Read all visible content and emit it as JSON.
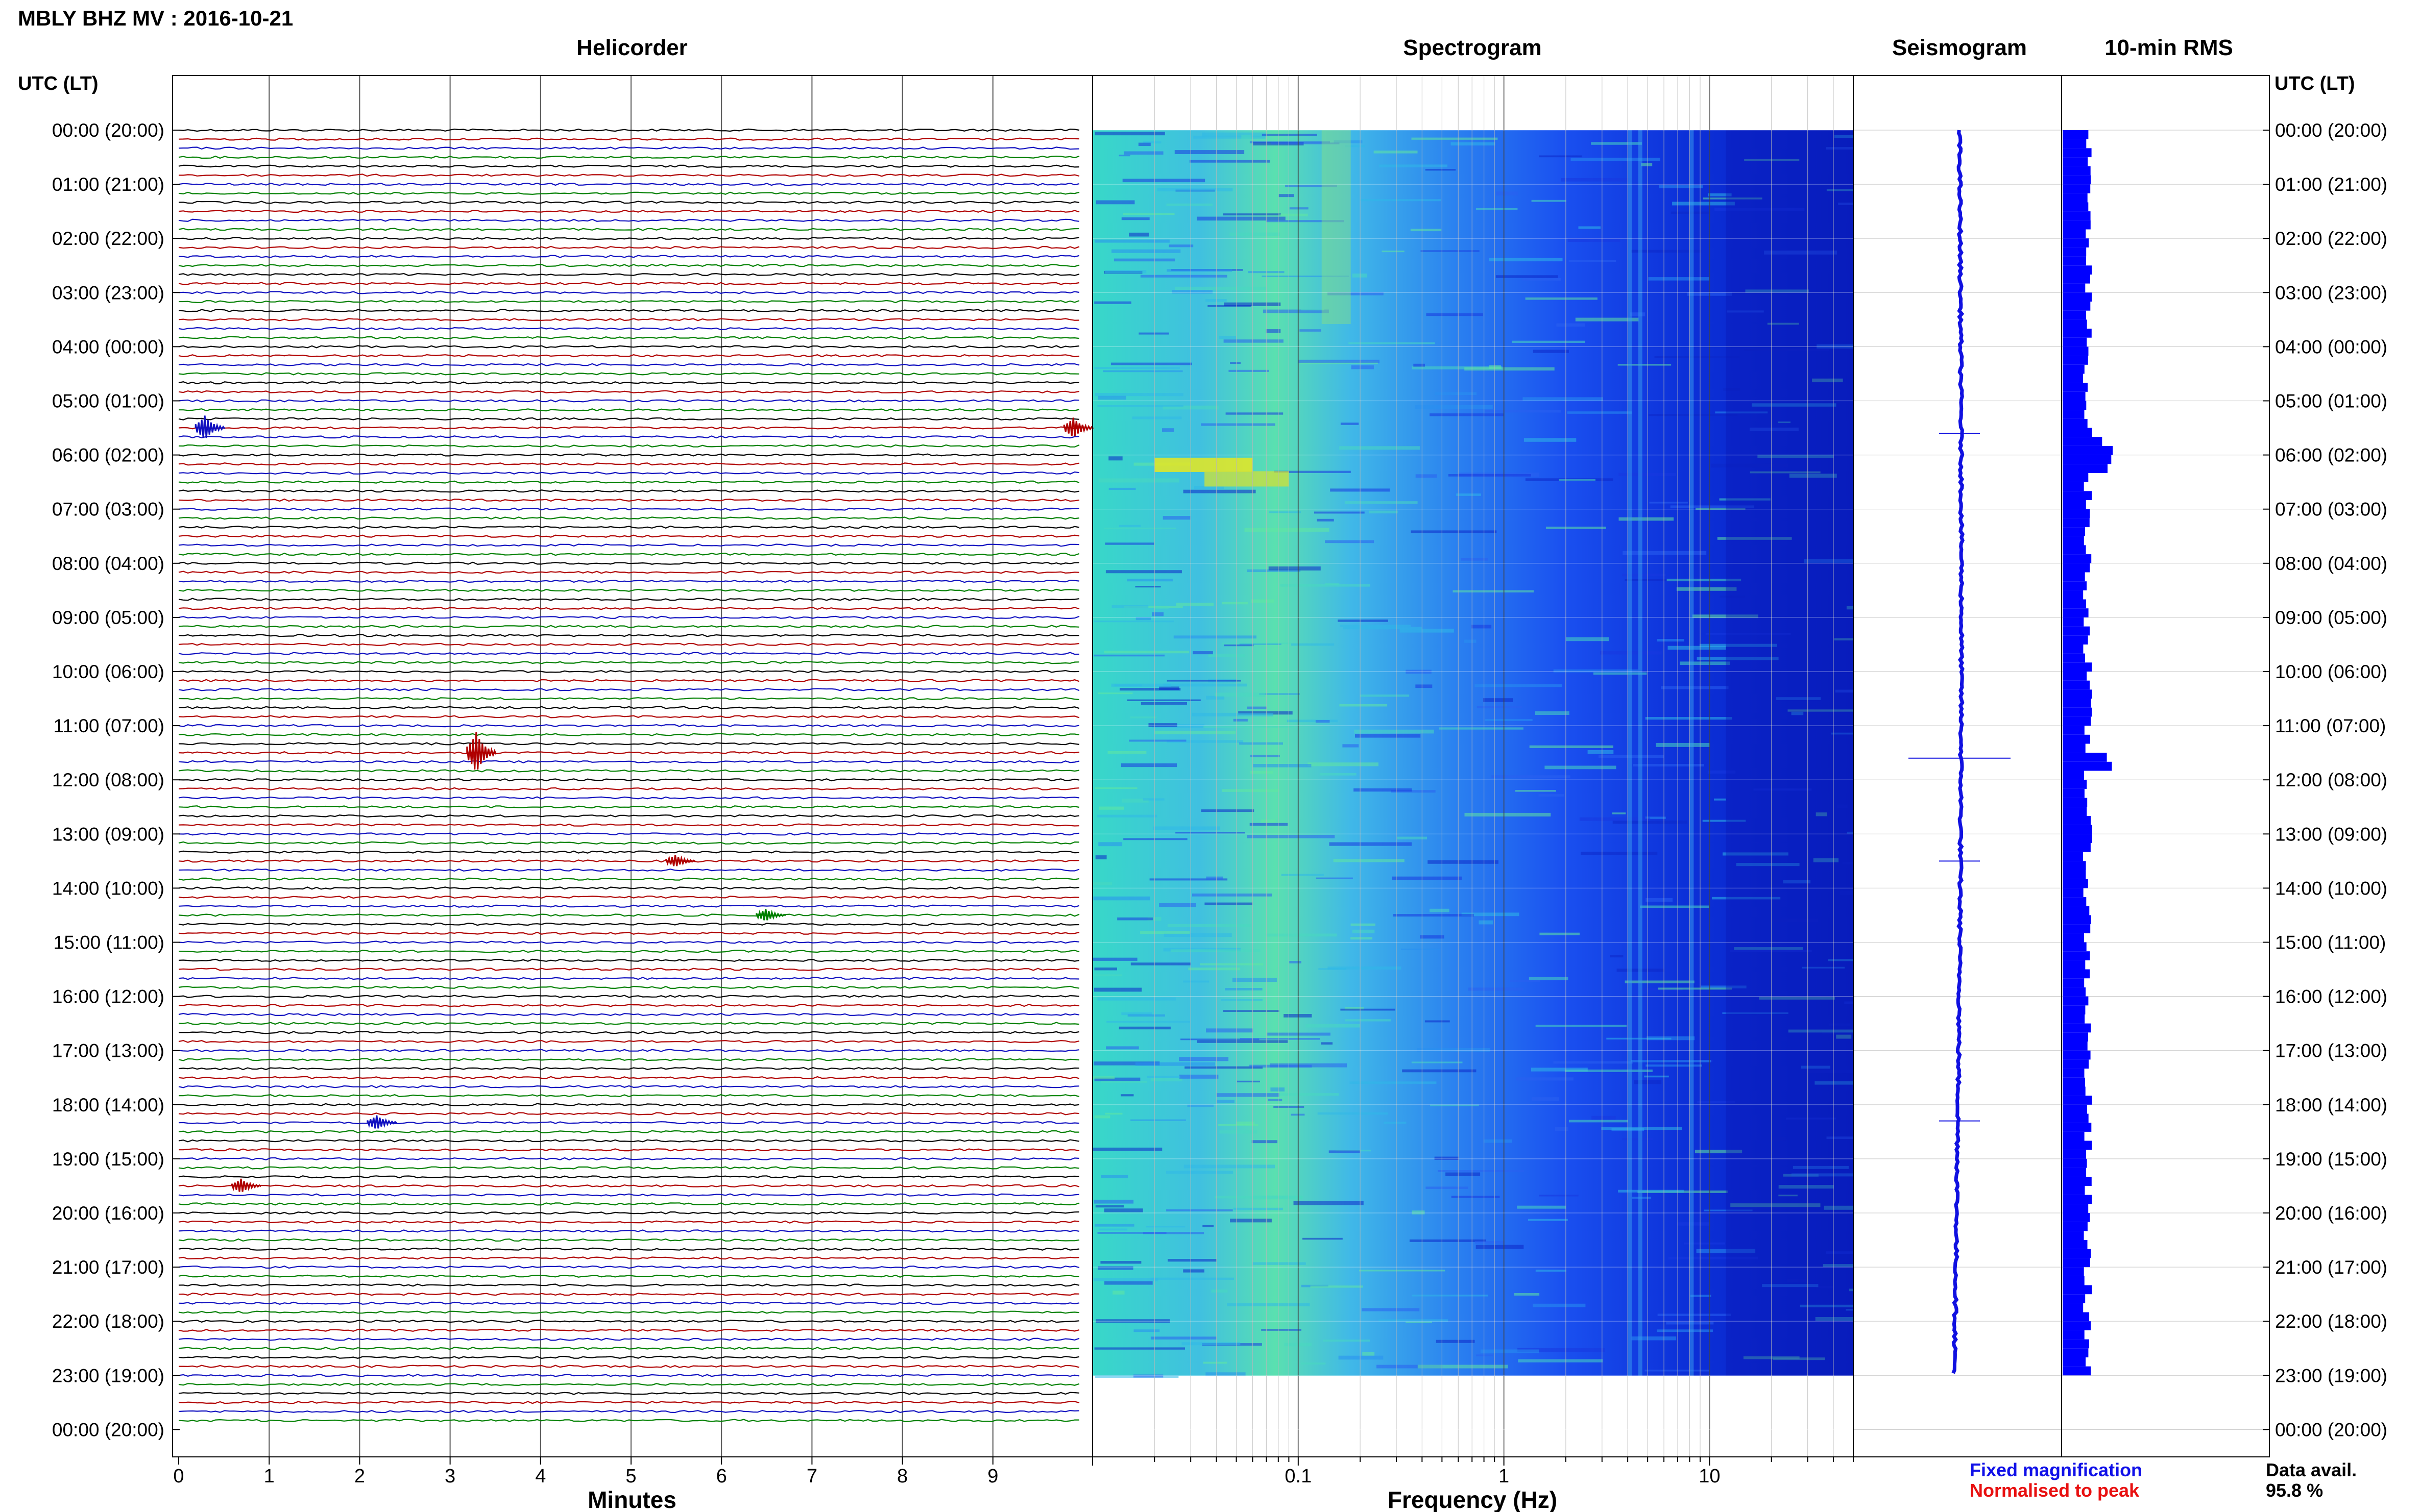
{
  "header": {
    "title": "MBLY BHZ MV : 2016-10-21",
    "time_axis_label_left": "UTC (LT)",
    "time_axis_label_right": "UTC (LT)"
  },
  "panels": {
    "helicorder": "Helicorder",
    "spectrogram": "Spectrogram",
    "seismogram": "Seismogram",
    "rms": "10-min RMS"
  },
  "footer": {
    "fixed_magnification": "Fixed magnification",
    "normalised": "Normalised to peak",
    "data_avail_label": "Data avail.",
    "data_avail_value": "95.8 %"
  },
  "colors": {
    "fixed_magnification": "#1010e8",
    "normalised": "#e81010",
    "trace_black": "#000000",
    "trace_red": "#b00000",
    "trace_blue": "#1010c0",
    "trace_green": "#008000",
    "rms_bar": "#0000ff"
  },
  "chart_data": [
    {
      "type": "line",
      "title": "Helicorder",
      "xlabel": "Minutes",
      "xlim": [
        0,
        10
      ],
      "x_ticks": [
        "0",
        "1",
        "2",
        "3",
        "4",
        "5",
        "6",
        "7",
        "8",
        "9"
      ],
      "y_tick_labels": [
        "00:00 (20:00)",
        "01:00 (21:00)",
        "02:00 (22:00)",
        "03:00 (23:00)",
        "04:00 (00:00)",
        "05:00 (01:00)",
        "06:00 (02:00)",
        "07:00 (03:00)",
        "08:00 (04:00)",
        "09:00 (05:00)",
        "10:00 (06:00)",
        "11:00 (07:00)",
        "12:00 (08:00)",
        "13:00 (09:00)",
        "14:00 (10:00)",
        "15:00 (11:00)",
        "16:00 (12:00)",
        "17:00 (13:00)",
        "18:00 (14:00)",
        "19:00 (15:00)",
        "20:00 (16:00)",
        "21:00 (17:00)",
        "22:00 (18:00)",
        "23:00 (19:00)",
        "00:00 (20:00)"
      ],
      "traces_per_hour": 6,
      "events": [
        {
          "hour": 5.5,
          "minute": 0.3,
          "amplitude": 0.6,
          "color": "blue"
        },
        {
          "hour": 5.5,
          "minute": 9.9,
          "amplitude": 0.5,
          "color": "red"
        },
        {
          "hour": 11.5,
          "minute": 3.3,
          "amplitude": 1.0,
          "color": "red"
        },
        {
          "hour": 13.5,
          "minute": 5.5,
          "amplitude": 0.3,
          "color": "red"
        },
        {
          "hour": 14.5,
          "minute": 6.5,
          "amplitude": 0.3,
          "color": "green"
        },
        {
          "hour": 18.33,
          "minute": 2.2,
          "amplitude": 0.35,
          "color": "blue"
        },
        {
          "hour": 19.5,
          "minute": 0.7,
          "amplitude": 0.35,
          "color": "red"
        }
      ]
    },
    {
      "type": "heatmap",
      "title": "Spectrogram",
      "xlabel": "Frequency (Hz)",
      "x_scale": "log",
      "xlim": [
        0.01,
        50
      ],
      "x_ticks": [
        "0.1",
        "1",
        "10"
      ],
      "y_range_hours": [
        0,
        23
      ]
    },
    {
      "type": "line",
      "title": "Seismogram",
      "y_range_hours": [
        0,
        23
      ],
      "spikes_hours": [
        5.6,
        11.6,
        13.5,
        18.3
      ]
    },
    {
      "type": "bar",
      "title": "10-min RMS",
      "y_range_hours": [
        0,
        23
      ],
      "peaks_hours": [
        5.8,
        6.1,
        11.6
      ]
    }
  ]
}
